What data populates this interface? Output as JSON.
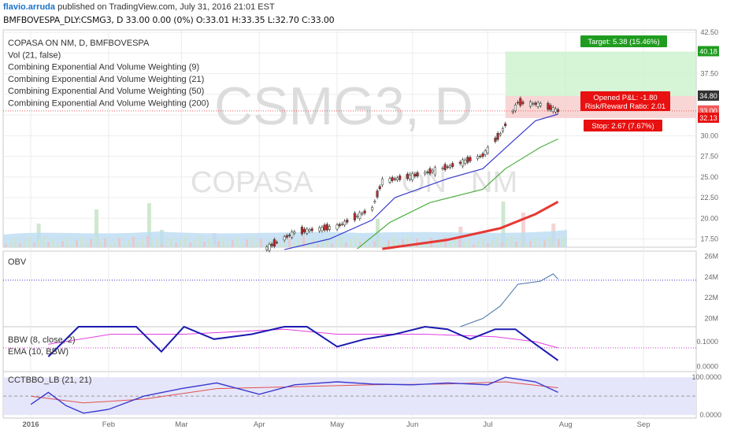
{
  "header": {
    "author": "flavio.arruda",
    "published": "published on TradingView.com, July 31, 2016 21:01 EST",
    "symbol_line": "BMFBOVESPA_DLY:CSMG3, D 33.00 0.00 (0%) O:33.01 H:33.35 L:32.70 C:33.00"
  },
  "chart_data": {
    "type": "candlestick",
    "watermark": {
      "symbol": "CSMG3, D",
      "name": "COPASA",
      "segment": "ON",
      "listing": "NM"
    },
    "x_ticks": [
      "2016",
      "Feb",
      "Mar",
      "Apr",
      "May",
      "Jun",
      "Jul",
      "Aug",
      "Sep"
    ],
    "main_pane": {
      "legend": [
        "COPASA     ON     NM, D, BMFBOVESPA",
        "Vol (21, false)",
        "Combining Exponential And Volume Weighting (9)",
        "Combining Exponential And Volume Weighting (21)",
        "Combining Exponential And Volume Weighting (50)",
        "Combining Exponential And Volume Weighting (200)"
      ],
      "y_ticks": [
        "42.50",
        "40.00",
        "37.50",
        "35.00",
        "32.50",
        "30.00",
        "27.50",
        "25.00",
        "22.50",
        "20.00",
        "17.50"
      ],
      "ylim": [
        16.5,
        42.8
      ],
      "price_labels": [
        {
          "text": "40.18",
          "value": 40.18,
          "color": "#1f9c1f"
        },
        {
          "text": "34.80",
          "value": 34.8,
          "color": "#333333"
        },
        {
          "text": "33.00",
          "value": 33.0,
          "color": "#f05a5a"
        },
        {
          "text": "32.13",
          "value": 32.13,
          "color": "#e81010"
        }
      ],
      "position": {
        "entry": 34.8,
        "target": 40.18,
        "stop": 32.13,
        "target_label": "Target: 5.38 (15.46%)",
        "pnl_label": "Opened P&L: -1.80",
        "rr_label": "Risk/Reward Ratio: 2.01",
        "stop_label": "Stop: 2.67 (7.67%)"
      },
      "last_price": 33.0,
      "candles": [
        {
          "d": "2016-04-04",
          "c": 16.4
        },
        {
          "d": "2016-04-15",
          "c": 18.3
        },
        {
          "d": "2016-05-02",
          "c": 19.0
        },
        {
          "d": "2016-05-16",
          "c": 21.2
        },
        {
          "d": "2016-05-20",
          "c": 24.5
        },
        {
          "d": "2016-06-01",
          "c": 25.1
        },
        {
          "d": "2016-06-15",
          "c": 26.2
        },
        {
          "d": "2016-06-29",
          "c": 27.6
        },
        {
          "d": "2016-07-06",
          "c": 30.2
        },
        {
          "d": "2016-07-13",
          "c": 34.0
        },
        {
          "d": "2016-07-22",
          "c": 33.8
        },
        {
          "d": "2016-07-29",
          "c": 33.0
        }
      ],
      "series": [
        {
          "name": "Combining Exponential And Volume Weighting (9)",
          "color": "#3a3ad0",
          "points": [
            [
              "2016-04-11",
              16.2
            ],
            [
              "2016-04-29",
              17.5
            ],
            [
              "2016-05-16",
              19.8
            ],
            [
              "2016-05-25",
              22.5
            ],
            [
              "2016-06-15",
              24.8
            ],
            [
              "2016-06-29",
              26.0
            ],
            [
              "2016-07-08",
              28.5
            ],
            [
              "2016-07-20",
              31.8
            ],
            [
              "2016-07-29",
              32.6
            ]
          ]
        },
        {
          "name": "Combining Exponential And Volume Weighting (21)",
          "color": "#4caf40",
          "points": [
            [
              "2016-05-10",
              16.3
            ],
            [
              "2016-05-23",
              19.5
            ],
            [
              "2016-06-08",
              21.9
            ],
            [
              "2016-06-29",
              23.5
            ],
            [
              "2016-07-08",
              26.0
            ],
            [
              "2016-07-22",
              28.6
            ],
            [
              "2016-07-29",
              29.6
            ]
          ]
        },
        {
          "name": "Combining Exponential And Volume Weighting (50)",
          "color": "#e53935",
          "points": [
            [
              "2016-05-20",
              16.3
            ],
            [
              "2016-06-15",
              17.4
            ],
            [
              "2016-07-06",
              18.8
            ],
            [
              "2016-07-20",
              20.5
            ],
            [
              "2016-07-29",
              22.0
            ]
          ]
        }
      ]
    },
    "obv_pane": {
      "label": "OBV",
      "y_ticks": [
        "26M",
        "24M",
        "22M",
        "20M"
      ],
      "ylim": [
        19.2,
        26.5
      ],
      "dotted_level": 23.7,
      "points": [
        [
          "2016-06-20",
          19.1
        ],
        [
          "2016-06-29",
          20.0
        ],
        [
          "2016-07-06",
          21.2
        ],
        [
          "2016-07-13",
          23.3
        ],
        [
          "2016-07-22",
          23.6
        ],
        [
          "2016-07-27",
          24.3
        ],
        [
          "2016-07-29",
          23.8
        ]
      ]
    },
    "bbw_pane": {
      "labels": [
        "BBW (8, close, 2)",
        "EMA (10, BBW)"
      ],
      "y_ticks": [
        "0.1000",
        "0.0000"
      ],
      "ylim": [
        -0.02,
        0.16
      ],
      "dotted_level": 0.075,
      "bbw": [
        [
          "2016-01-08",
          0.04
        ],
        [
          "2016-01-20",
          0.16
        ],
        [
          "2016-02-02",
          0.17
        ],
        [
          "2016-02-12",
          0.17
        ],
        [
          "2016-02-22",
          0.06
        ],
        [
          "2016-03-02",
          0.17
        ],
        [
          "2016-03-14",
          0.11
        ],
        [
          "2016-03-29",
          0.13
        ],
        [
          "2016-04-11",
          0.16
        ],
        [
          "2016-04-20",
          0.17
        ],
        [
          "2016-05-02",
          0.08
        ],
        [
          "2016-05-13",
          0.11
        ],
        [
          "2016-05-25",
          0.13
        ],
        [
          "2016-06-06",
          0.16
        ],
        [
          "2016-06-15",
          0.15
        ],
        [
          "2016-06-24",
          0.11
        ],
        [
          "2016-07-04",
          0.15
        ],
        [
          "2016-07-12",
          0.15
        ],
        [
          "2016-07-20",
          0.09
        ],
        [
          "2016-07-29",
          0.025
        ]
      ],
      "ema": [
        [
          "2016-01-08",
          0.09
        ],
        [
          "2016-02-02",
          0.13
        ],
        [
          "2016-03-02",
          0.13
        ],
        [
          "2016-04-11",
          0.15
        ],
        [
          "2016-05-02",
          0.13
        ],
        [
          "2016-06-06",
          0.13
        ],
        [
          "2016-07-04",
          0.12
        ],
        [
          "2016-07-20",
          0.1
        ],
        [
          "2016-07-29",
          0.075
        ]
      ]
    },
    "cct_pane": {
      "label": "CCTBBO_LB (21, 21)",
      "y_ticks": [
        "100.0000",
        "0.0000"
      ],
      "ylim": [
        -8,
        115
      ],
      "band": [
        0,
        100
      ],
      "midline": 50,
      "osc": [
        [
          "2016-01-01",
          28
        ],
        [
          "2016-01-08",
          60
        ],
        [
          "2016-01-15",
          25
        ],
        [
          "2016-01-22",
          5
        ],
        [
          "2016-02-01",
          15
        ],
        [
          "2016-02-15",
          50
        ],
        [
          "2016-03-01",
          70
        ],
        [
          "2016-03-15",
          85
        ],
        [
          "2016-04-01",
          55
        ],
        [
          "2016-04-15",
          80
        ],
        [
          "2016-05-02",
          88
        ],
        [
          "2016-05-16",
          82
        ],
        [
          "2016-06-01",
          80
        ],
        [
          "2016-06-15",
          85
        ],
        [
          "2016-07-01",
          80
        ],
        [
          "2016-07-08",
          100
        ],
        [
          "2016-07-20",
          88
        ],
        [
          "2016-07-29",
          60
        ]
      ],
      "signal": [
        [
          "2016-01-01",
          50
        ],
        [
          "2016-01-22",
          32
        ],
        [
          "2016-02-15",
          42
        ],
        [
          "2016-03-15",
          70
        ],
        [
          "2016-04-15",
          75
        ],
        [
          "2016-05-16",
          80
        ],
        [
          "2016-06-15",
          82
        ],
        [
          "2016-07-08",
          88
        ],
        [
          "2016-07-29",
          72
        ]
      ]
    }
  }
}
